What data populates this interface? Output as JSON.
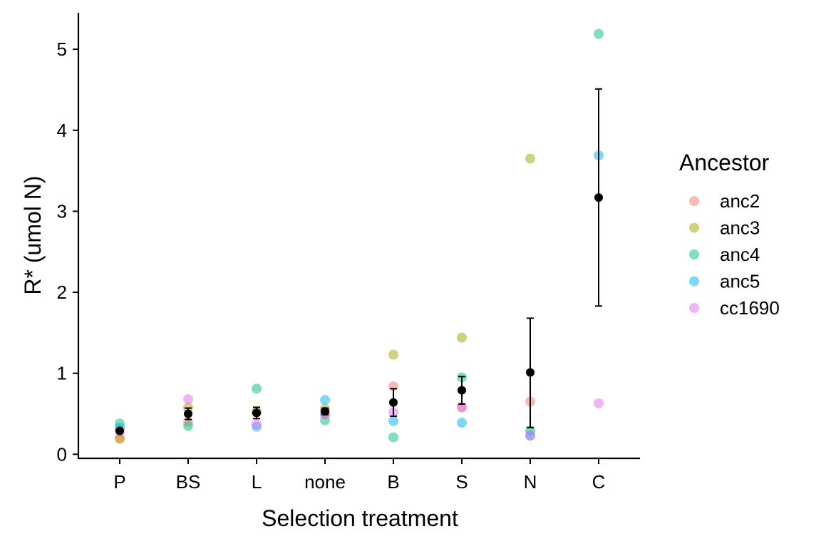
{
  "chart_data": {
    "type": "scatter",
    "xlabel": "Selection treatment",
    "ylabel": "R* (umol N)",
    "categories": [
      "P",
      "BS",
      "L",
      "none",
      "B",
      "S",
      "N",
      "C"
    ],
    "ylim": [
      -0.05,
      5.45
    ],
    "yticks": [
      0,
      1,
      2,
      3,
      4,
      5
    ],
    "grid": false,
    "legend": {
      "title": "Ancestor",
      "position": "right",
      "entries": [
        "anc2",
        "anc3",
        "anc4",
        "anc5",
        "cc1690"
      ]
    },
    "series": [
      {
        "name": "anc2",
        "color": "#F8766D",
        "points": [
          {
            "x": "P",
            "y": 0.2
          },
          {
            "x": "BS",
            "y": 0.4
          },
          {
            "x": "L",
            "y": 0.52
          },
          {
            "x": "none",
            "y": 0.5
          },
          {
            "x": "B",
            "y": 0.84
          },
          {
            "x": "S",
            "y": 0.58
          },
          {
            "x": "N",
            "y": 0.65
          }
        ]
      },
      {
        "name": "anc3",
        "color": "#A3A500",
        "points": [
          {
            "x": "P",
            "y": 0.19
          },
          {
            "x": "BS",
            "y": 0.58
          },
          {
            "x": "L",
            "y": 0.52
          },
          {
            "x": "none",
            "y": 0.56
          },
          {
            "x": "B",
            "y": 1.23
          },
          {
            "x": "S",
            "y": 1.44
          },
          {
            "x": "N",
            "y": 3.65
          }
        ]
      },
      {
        "name": "anc4",
        "color": "#00BF7D",
        "points": [
          {
            "x": "P",
            "y": 0.38
          },
          {
            "x": "BS",
            "y": 0.35
          },
          {
            "x": "L",
            "y": 0.81
          },
          {
            "x": "none",
            "y": 0.42
          },
          {
            "x": "B",
            "y": 0.21
          },
          {
            "x": "S",
            "y": 0.95
          },
          {
            "x": "N",
            "y": 0.29
          },
          {
            "x": "C",
            "y": 5.19
          }
        ]
      },
      {
        "name": "anc5",
        "color": "#00B0F6",
        "points": [
          {
            "x": "P",
            "y": 0.33
          },
          {
            "x": "L",
            "y": 0.34
          },
          {
            "x": "none",
            "y": 0.67
          },
          {
            "x": "B",
            "y": 0.41
          },
          {
            "x": "S",
            "y": 0.39
          },
          {
            "x": "N",
            "y": 0.23
          },
          {
            "x": "C",
            "y": 3.69
          }
        ]
      },
      {
        "name": "cc1690",
        "color": "#E76BF3",
        "points": [
          {
            "x": "P",
            "y": 0.28
          },
          {
            "x": "BS",
            "y": 0.68
          },
          {
            "x": "L",
            "y": 0.37
          },
          {
            "x": "none",
            "y": 0.49
          },
          {
            "x": "B",
            "y": 0.52
          },
          {
            "x": "S",
            "y": 0.58
          },
          {
            "x": "N",
            "y": 0.23
          },
          {
            "x": "C",
            "y": 0.63
          }
        ]
      }
    ],
    "summary": {
      "color": "#000000",
      "points": [
        {
          "x": "P",
          "mean": 0.29,
          "low": 0.27,
          "high": 0.31
        },
        {
          "x": "BS",
          "mean": 0.5,
          "low": 0.43,
          "high": 0.57
        },
        {
          "x": "L",
          "mean": 0.51,
          "low": 0.44,
          "high": 0.58
        },
        {
          "x": "none",
          "mean": 0.53,
          "low": 0.49,
          "high": 0.57
        },
        {
          "x": "B",
          "mean": 0.64,
          "low": 0.47,
          "high": 0.81
        },
        {
          "x": "S",
          "mean": 0.79,
          "low": 0.62,
          "high": 0.96
        },
        {
          "x": "N",
          "mean": 1.01,
          "low": 0.33,
          "high": 1.68
        },
        {
          "x": "C",
          "mean": 3.17,
          "low": 1.83,
          "high": 4.51
        }
      ]
    }
  }
}
